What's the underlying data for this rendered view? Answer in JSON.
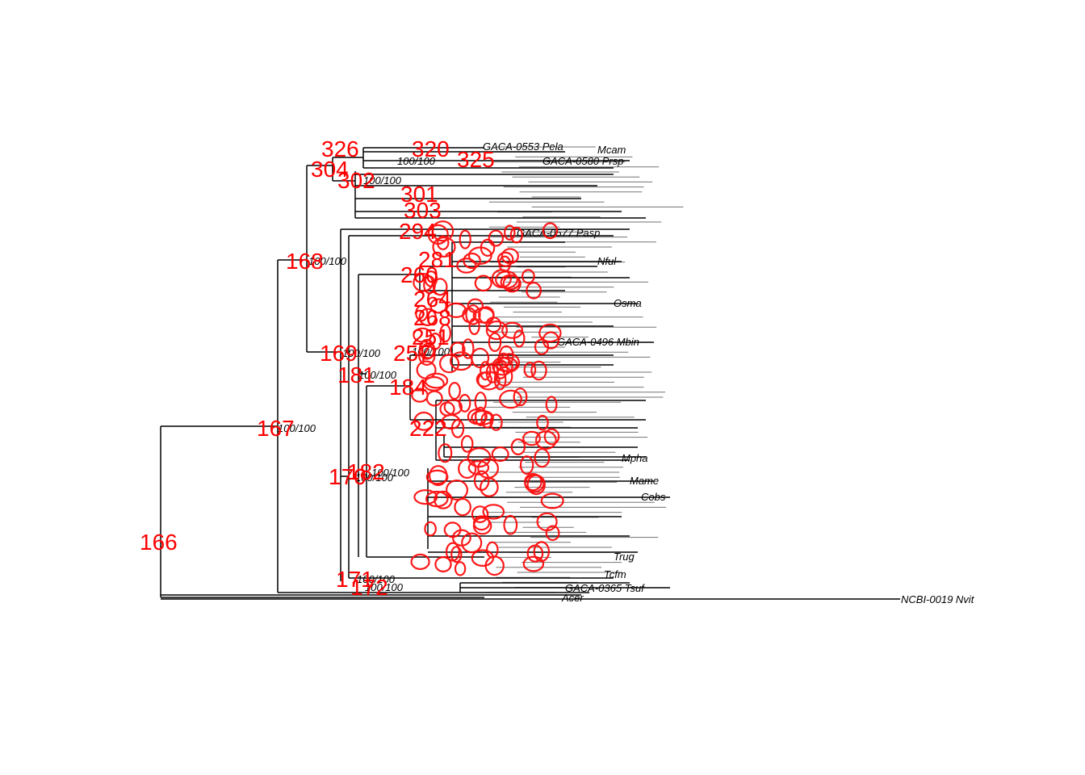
{
  "tree": {
    "root_node": "166",
    "colors": {
      "edge": "#000000",
      "node_label": "#ff0000",
      "tip_label": "#000000"
    },
    "node_labels": [
      "166",
      "167",
      "168",
      "169",
      "170",
      "171",
      "172",
      "181",
      "182",
      "184",
      "222",
      "251",
      "257",
      "260",
      "264",
      "268",
      "281",
      "294",
      "301",
      "302",
      "303",
      "304",
      "320",
      "325",
      "326"
    ],
    "support_values": [
      "100/100",
      "100/100",
      "100/100",
      "100/100",
      "100/100",
      "100/100",
      "100/100",
      "100/100",
      "100/100",
      "100/100",
      "100/100"
    ],
    "visible_tip_labels": [
      "GACA-0553 Pela",
      "Mcam",
      "GACA-0580 Prsp",
      "NCBI-0019 Nvit",
      "GACA-0577 Pasp",
      "Nful",
      "Osma",
      "GACA-0496 Mbin",
      "Cobs",
      "Mpha",
      "Mame",
      "Trug",
      "Tcfm",
      "GACA-0365 Tsuf",
      "Acer"
    ]
  }
}
